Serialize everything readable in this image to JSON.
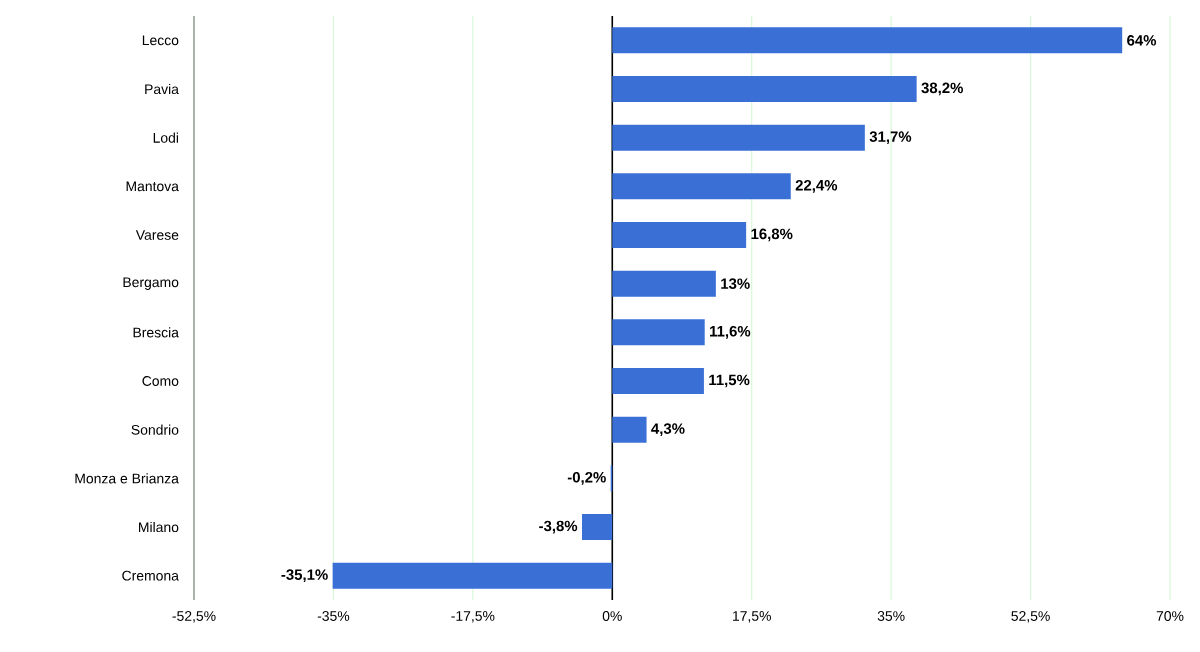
{
  "chart_data": {
    "type": "bar",
    "orientation": "horizontal",
    "categories": [
      "Lecco",
      "Pavia",
      "Lodi",
      "Mantova",
      "Varese",
      "Bergamo",
      "Brescia",
      "Como",
      "Sondrio",
      "Monza e Brianza",
      "Milano",
      "Cremona"
    ],
    "values": [
      64,
      38.2,
      31.7,
      22.4,
      16.8,
      13,
      11.6,
      11.5,
      4.3,
      -0.2,
      -3.8,
      -35.1
    ],
    "value_labels": [
      "64%",
      "38,2%",
      "31,7%",
      "22,4%",
      "16,8%",
      "13%",
      "11,6%",
      "11,5%",
      "4,3%",
      "-0,2%",
      "-3,8%",
      "-35,1%"
    ],
    "color": "#3a6fd6",
    "xlim": [
      -52.5,
      70
    ],
    "xticks": [
      {
        "value": -52.5,
        "label": "-52,5%"
      },
      {
        "value": -35,
        "label": "-35%"
      },
      {
        "value": -17.5,
        "label": "-17,5%"
      },
      {
        "value": 0,
        "label": "0%"
      },
      {
        "value": 17.5,
        "label": "17,5%"
      },
      {
        "value": 35,
        "label": "35%"
      },
      {
        "value": 52.5,
        "label": "52,5%"
      },
      {
        "value": 70,
        "label": "70%"
      }
    ],
    "grid": "x"
  }
}
